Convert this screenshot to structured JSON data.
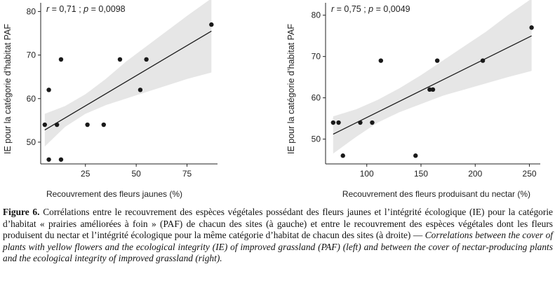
{
  "charts_meta": {
    "band_color": "#e6e6e6",
    "point_color": "#1a1a1a",
    "line_color": "#1a1a1a"
  },
  "chart_data": [
    {
      "type": "scatter",
      "title": "",
      "annotation": {
        "r_label": "r",
        "r_value": " = 0,71 ; ",
        "p_label": "p",
        "p_value": " = 0,0098"
      },
      "xlabel": "Recouvrement des fleurs jaunes (%)",
      "ylabel": "IE pour la catégorie d’habitat PAF",
      "xlim": [
        3,
        90
      ],
      "ylim": [
        45,
        82
      ],
      "xticks": [
        25,
        50,
        75
      ],
      "yticks": [
        50,
        60,
        70,
        80
      ],
      "points": [
        {
          "x": 5,
          "y": 54
        },
        {
          "x": 7,
          "y": 46
        },
        {
          "x": 7,
          "y": 62
        },
        {
          "x": 11,
          "y": 54
        },
        {
          "x": 13,
          "y": 69
        },
        {
          "x": 13,
          "y": 46
        },
        {
          "x": 26,
          "y": 54
        },
        {
          "x": 34,
          "y": 54
        },
        {
          "x": 42,
          "y": 69
        },
        {
          "x": 52,
          "y": 62
        },
        {
          "x": 55,
          "y": 69
        },
        {
          "x": 87,
          "y": 77
        }
      ],
      "fit": {
        "x0": 5,
        "y0": 52.8,
        "x1": 87,
        "y1": 75.5
      },
      "band": [
        {
          "x": 5,
          "lo": 49.0,
          "hi": 56.5
        },
        {
          "x": 15,
          "lo": 53.5,
          "hi": 58.3
        },
        {
          "x": 25,
          "lo": 56.5,
          "hi": 61.0
        },
        {
          "x": 35,
          "lo": 58.5,
          "hi": 64.5
        },
        {
          "x": 45,
          "lo": 60.0,
          "hi": 68.5
        },
        {
          "x": 55,
          "lo": 61.5,
          "hi": 72.0
        },
        {
          "x": 65,
          "lo": 63.0,
          "hi": 75.5
        },
        {
          "x": 75,
          "lo": 64.5,
          "hi": 79.0
        },
        {
          "x": 87,
          "lo": 66.0,
          "hi": 83.0
        }
      ]
    },
    {
      "type": "scatter",
      "title": "",
      "annotation": {
        "r_label": "r",
        "r_value": " = 0,75 ; ",
        "p_label": "p",
        "p_value": " = 0,0049"
      },
      "xlabel": "Recouvrement des fleurs produisant du nectar (%)",
      "ylabel": "IE pour la catégorie d’habitat PAF",
      "xlim": [
        62,
        260
      ],
      "ylim": [
        44,
        83
      ],
      "xticks": [
        100,
        150,
        200,
        250
      ],
      "yticks": [
        50,
        60,
        70,
        80
      ],
      "points": [
        {
          "x": 69,
          "y": 54
        },
        {
          "x": 74,
          "y": 54
        },
        {
          "x": 78,
          "y": 46
        },
        {
          "x": 94,
          "y": 54
        },
        {
          "x": 105,
          "y": 54
        },
        {
          "x": 113,
          "y": 69
        },
        {
          "x": 145,
          "y": 46
        },
        {
          "x": 158,
          "y": 62
        },
        {
          "x": 161,
          "y": 62
        },
        {
          "x": 165,
          "y": 69
        },
        {
          "x": 207,
          "y": 69
        },
        {
          "x": 252,
          "y": 77
        }
      ],
      "fit": {
        "x0": 69,
        "y0": 51.2,
        "x1": 252,
        "y1": 75.0
      },
      "band": [
        {
          "x": 69,
          "lo": 46.5,
          "hi": 55.5
        },
        {
          "x": 90,
          "lo": 50.5,
          "hi": 57.2
        },
        {
          "x": 110,
          "lo": 54.0,
          "hi": 59.5
        },
        {
          "x": 130,
          "lo": 56.5,
          "hi": 62.3
        },
        {
          "x": 150,
          "lo": 58.5,
          "hi": 65.5
        },
        {
          "x": 170,
          "lo": 60.5,
          "hi": 69.0
        },
        {
          "x": 190,
          "lo": 62.0,
          "hi": 72.5
        },
        {
          "x": 210,
          "lo": 63.5,
          "hi": 76.0
        },
        {
          "x": 230,
          "lo": 65.0,
          "hi": 80.0
        },
        {
          "x": 252,
          "lo": 66.5,
          "hi": 84.0
        }
      ]
    }
  ],
  "caption": {
    "lead": "Figure 6.",
    "fr": " Corrélations entre le recouvrement des espèces végétales possédant des fleurs jaunes et l’intégrité écologique (IE) pour la catégorie d’habitat « prairies améliorées à foin » (PAF) de chacun des sites (à gauche) et entre le recouvrement des espèces végétales dont les fleurs produisent du nectar et l’intégrité écologique pour la même catégorie d’habitat de chacun des sites (à droite) — ",
    "en": "Correlations between the cover of plants with yellow flowers and the ecological integrity (IE) of improved grassland (PAF) (left) and between the cover of nectar-producing plants and the ecological integrity of improved grassland (right)."
  }
}
